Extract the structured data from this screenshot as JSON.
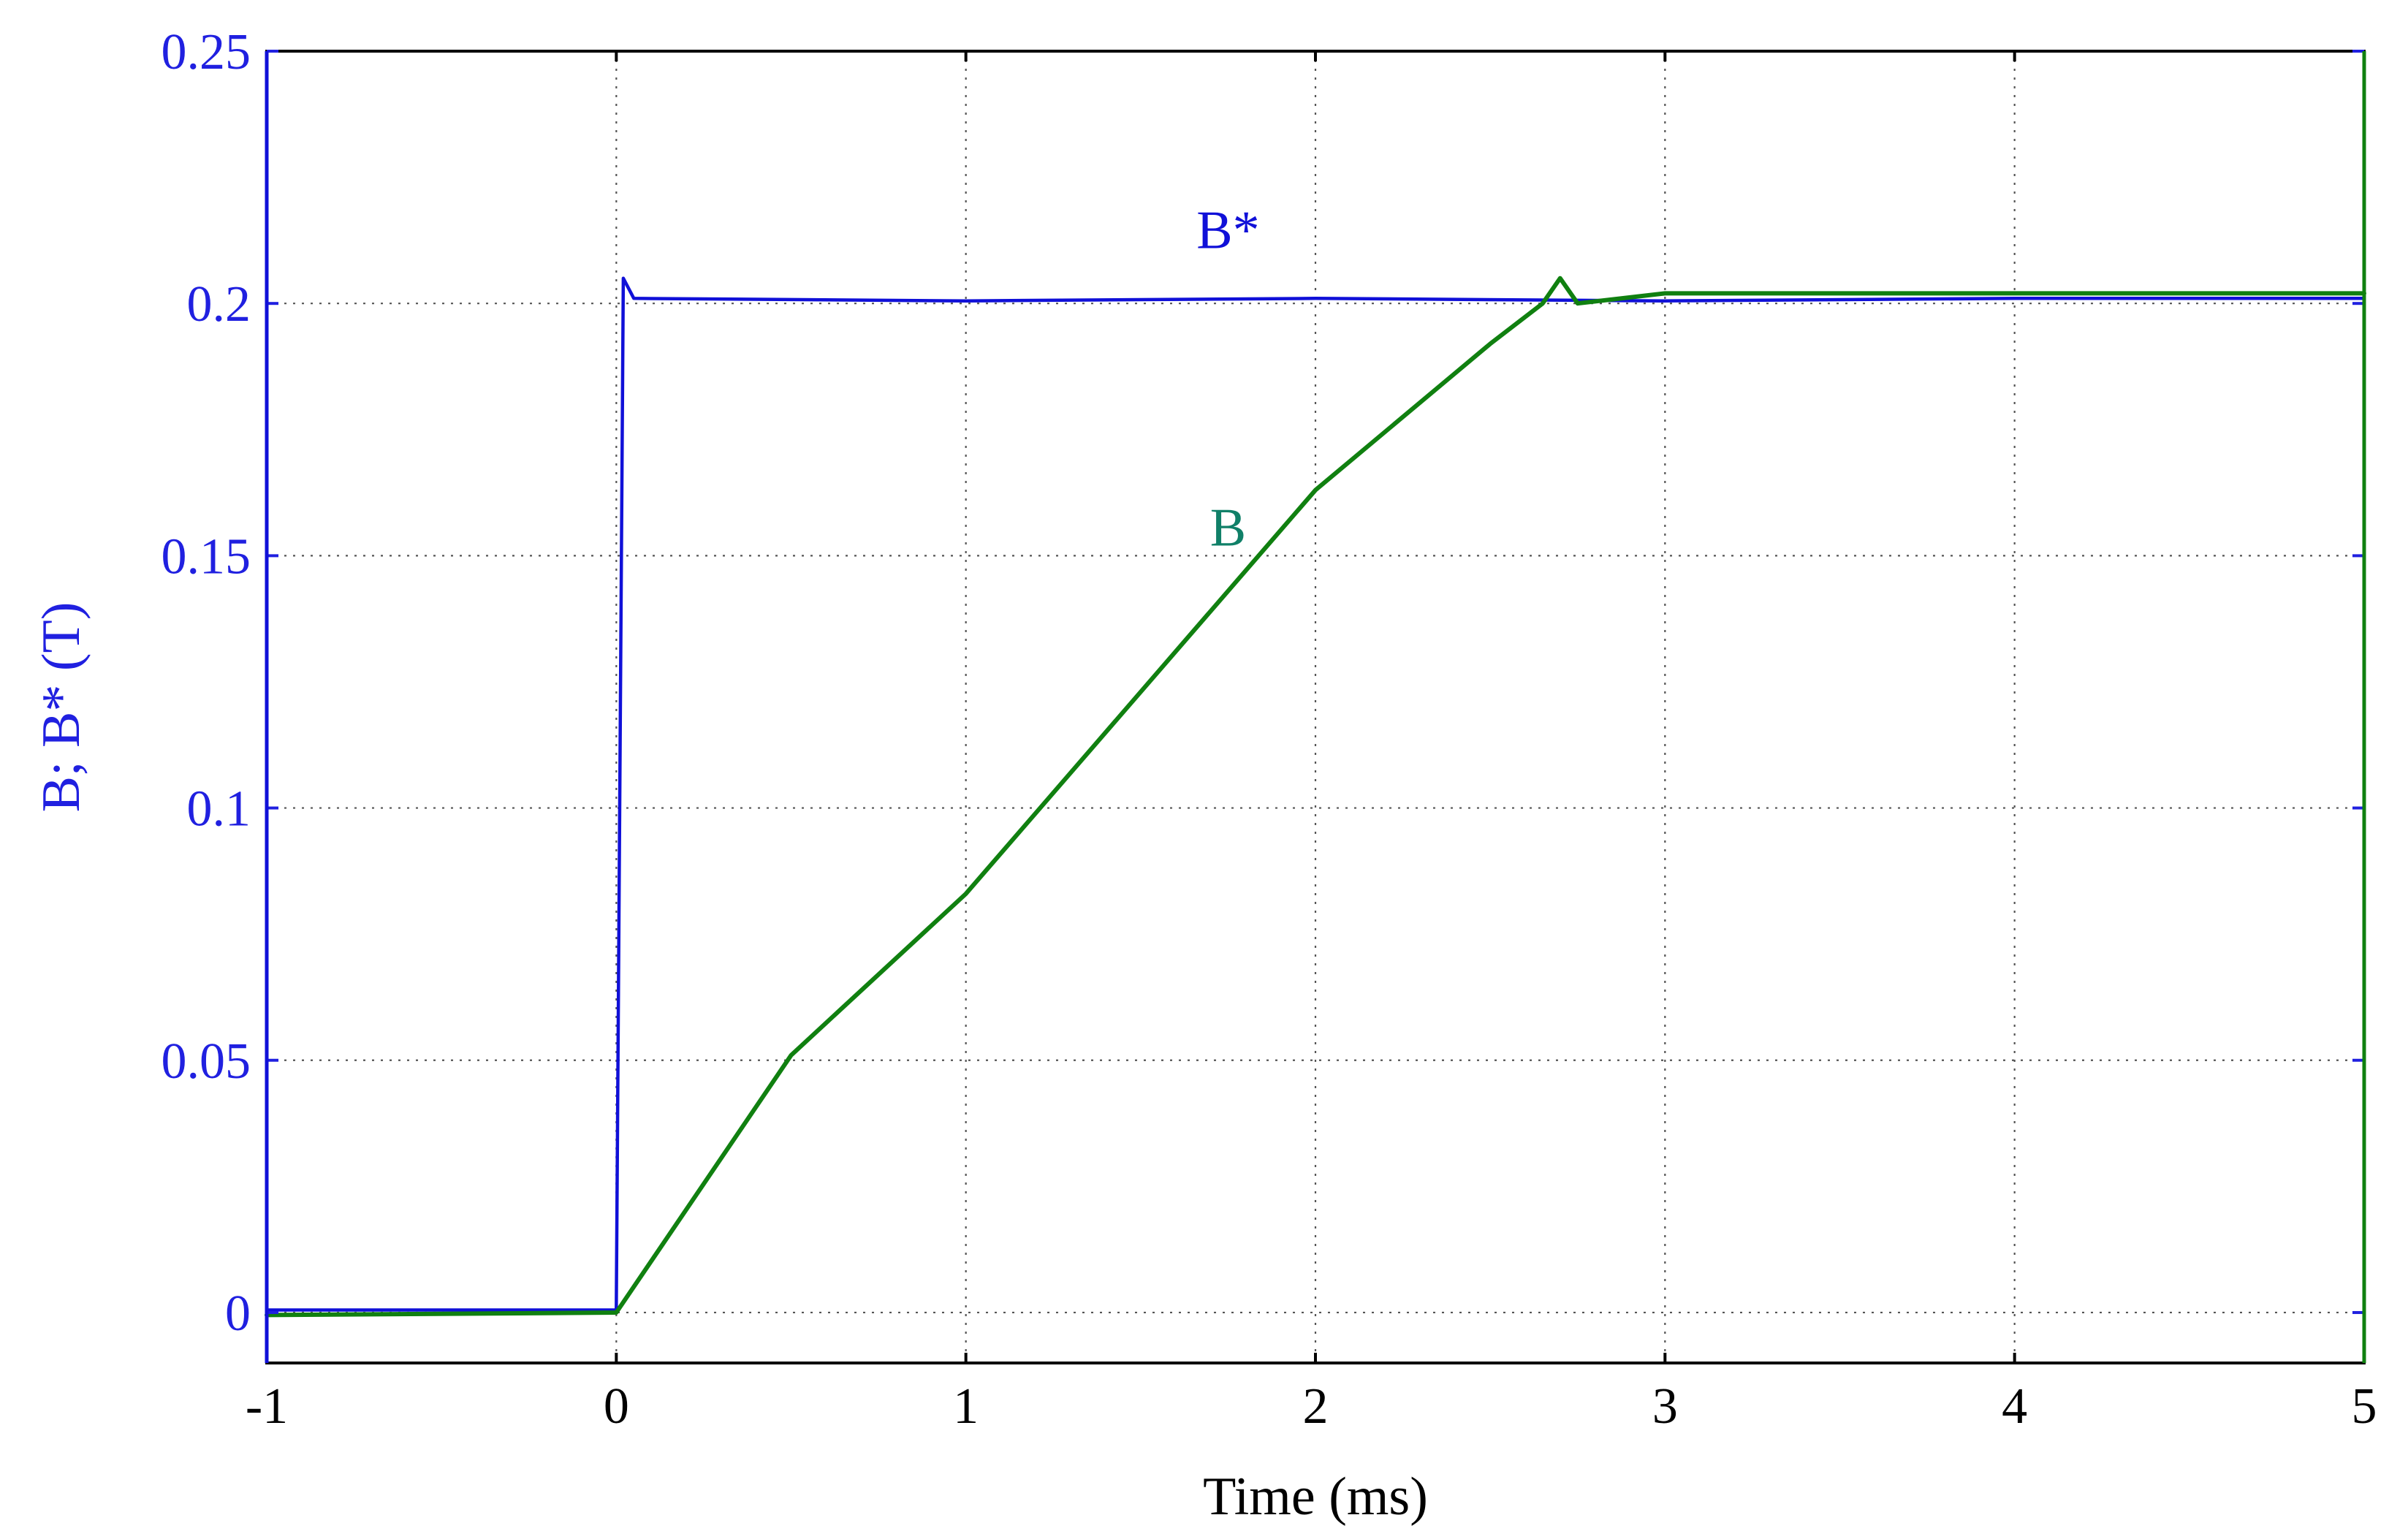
{
  "chart_data": {
    "type": "line",
    "title": "",
    "xlabel": "Time (ms)",
    "ylabel": "B; B* (T)",
    "xlim": [
      -1,
      5
    ],
    "ylim": [
      -0.01,
      0.25
    ],
    "xticks": [
      -1,
      0,
      1,
      2,
      3,
      4,
      5
    ],
    "xtick_labels": [
      "-1",
      "0",
      "1",
      "2",
      "3",
      "4",
      "5"
    ],
    "yticks": [
      0,
      0.05,
      0.1,
      0.15,
      0.2,
      0.25
    ],
    "ytick_labels": [
      "0",
      "0.05",
      "0.1",
      "0.15",
      "0.2",
      "0.25"
    ],
    "grid": true,
    "colors": {
      "ylabel": "#2020e0",
      "yticks": "#2020e0",
      "xticks": "#000000"
    },
    "series": [
      {
        "name": "B*",
        "color": "#1010d8",
        "x": [
          -1,
          0,
          0.02,
          0.05,
          1,
          2,
          3,
          4,
          5
        ],
        "y": [
          0.0005,
          0.0005,
          0.205,
          0.201,
          0.2005,
          0.201,
          0.2005,
          0.201,
          0.201
        ]
      },
      {
        "name": "B",
        "color": "#108010",
        "x": [
          -1,
          0,
          0.5,
          1,
          1.5,
          2,
          2.5,
          2.65,
          2.7,
          2.75,
          3,
          4,
          5
        ],
        "y": [
          -0.0005,
          0.0,
          0.051,
          0.083,
          0.123,
          0.163,
          0.192,
          0.2,
          0.205,
          0.2,
          0.202,
          0.202,
          0.202
        ]
      }
    ],
    "annotations": [
      {
        "text": "B*",
        "x": 1.75,
        "y": 0.211,
        "color": "#1010d8"
      },
      {
        "text": "B",
        "x": 1.75,
        "y": 0.152,
        "color": "#108068"
      }
    ]
  }
}
